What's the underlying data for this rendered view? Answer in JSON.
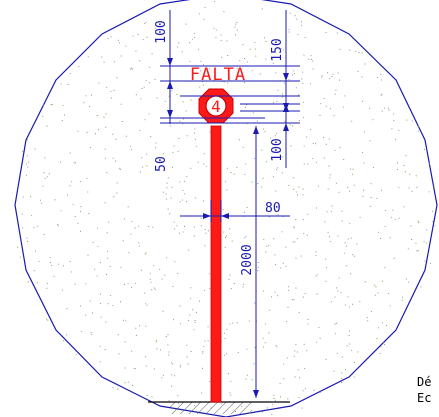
{
  "colors": {
    "outline": "#1a1ab0",
    "sign_red": "#ff1a1a",
    "speckle": "#7da35a",
    "ground": "#000000"
  },
  "sign": {
    "label": "FALTA",
    "number": "4"
  },
  "dimensions": {
    "top_left": "100",
    "top_right": "150",
    "left_lower": "50",
    "right_lower": "100",
    "post_width": "80",
    "post_height": "2000"
  },
  "notes": {
    "line1": "Dé",
    "line2": "Ec"
  }
}
